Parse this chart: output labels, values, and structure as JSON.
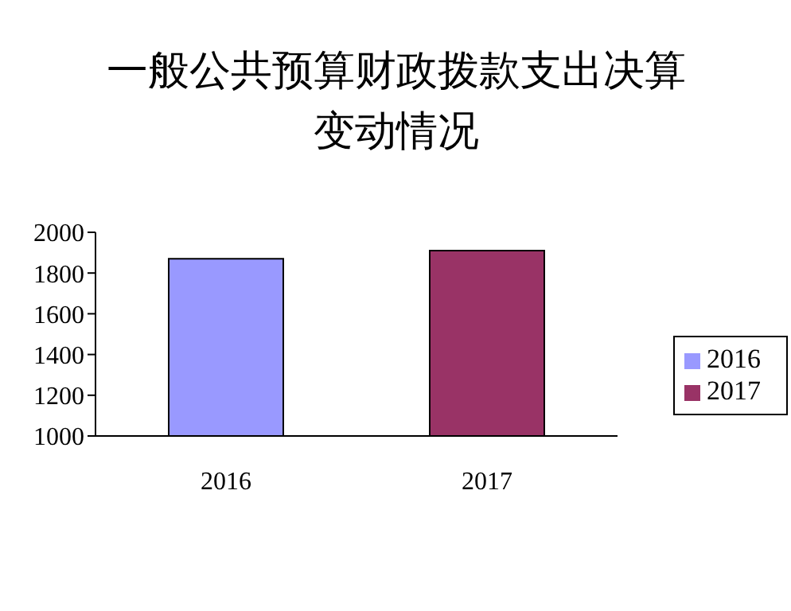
{
  "chart_data": {
    "type": "bar",
    "title": "一般公共预算财政拨款支出决算变动情况",
    "categories": [
      "2016",
      "2017"
    ],
    "series": [
      {
        "name": "2016",
        "color": "#9999ff",
        "values": [
          1870,
          null
        ]
      },
      {
        "name": "2017",
        "color": "#993366",
        "values": [
          null,
          1910
        ]
      }
    ],
    "stacked": true,
    "ylim": [
      1000,
      2000
    ],
    "yticks": [
      1000,
      1200,
      1400,
      1600,
      1800,
      2000
    ],
    "legend": "right"
  }
}
